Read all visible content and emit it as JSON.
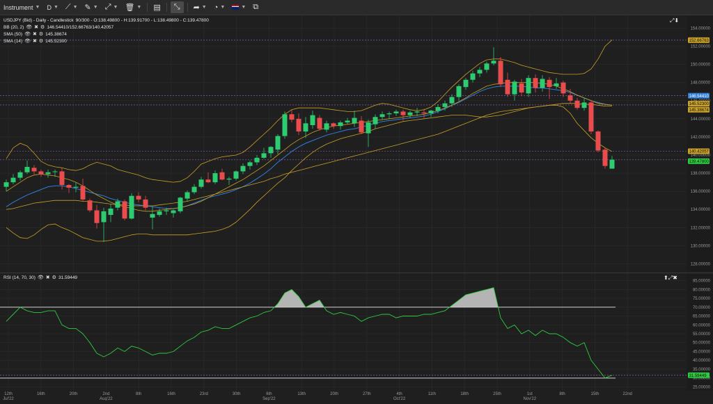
{
  "toolbar": {
    "instrument_label": "Instrument",
    "timeframe_label": "D",
    "items": [
      "line-tool-icon",
      "pencil-icon",
      "crosshair-tool-icon",
      "trash-icon",
      "layout-icon",
      "fullscreen-icon",
      "arrow-share-icon",
      "bell-icon",
      "language-flag-icon",
      "popout-icon"
    ]
  },
  "main": {
    "title": "USDJPY (Bid) - Daily - Candlestick",
    "ohlc": " 90/300 - O:138.49800 - H:139.91700 - L:138.49800 - C:139.47800",
    "legend": [
      {
        "name": "BB (20, 2)",
        "values": "146.54410/152.66763/140.42057"
      },
      {
        "name": "SMA (50)",
        "values": "145.38674"
      },
      {
        "name": "SMA (14)",
        "values": "145.52300"
      }
    ],
    "y_ticks": [
      "154.00000",
      "152.00000",
      "150.00000",
      "148.00000",
      "146.00000",
      "144.00000",
      "142.00000",
      "140.00000",
      "138.00000",
      "136.00000",
      "134.00000",
      "132.00000",
      "130.00000",
      "128.00000"
    ],
    "price_tags": [
      {
        "label": "152.66763",
        "bg": "#c9a227",
        "fg": "#111",
        "y": 152.66763
      },
      {
        "label": "146.54410",
        "bg": "#2f7ed8",
        "fg": "#fff",
        "y": 146.5441
      },
      {
        "label": "145.52300",
        "bg": "#c9a227",
        "fg": "#111",
        "y": 145.523
      },
      {
        "label": "145.38674",
        "bg": "#c9a227",
        "fg": "#111",
        "y": 145.38674
      },
      {
        "label": "140.42057",
        "bg": "#c9a227",
        "fg": "#111",
        "y": 140.42057
      },
      {
        "label": "139.47800",
        "bg": "#2ecc40",
        "fg": "#111",
        "y": 139.478
      }
    ]
  },
  "rsi": {
    "title": "RSI (14, 70, 30)",
    "value": "31.59449",
    "y_ticks": [
      "85.00000",
      "80.00000",
      "75.00000",
      "70.00000",
      "65.00000",
      "60.00000",
      "55.00000",
      "50.00000",
      "45.00000",
      "40.00000",
      "35.00000",
      "30.00000",
      "25.00000"
    ],
    "tag": {
      "label": "31.59449",
      "bg": "#2ecc40",
      "fg": "#111"
    }
  },
  "x_ticks": [
    {
      "label": "12th",
      "sub": "Jul'22"
    },
    {
      "label": "16th",
      "sub": ""
    },
    {
      "label": "20th",
      "sub": ""
    },
    {
      "label": "2nd",
      "sub": "Aug'22"
    },
    {
      "label": "8th",
      "sub": ""
    },
    {
      "label": "16th",
      "sub": ""
    },
    {
      "label": "23rd",
      "sub": ""
    },
    {
      "label": "30th",
      "sub": ""
    },
    {
      "label": "6th",
      "sub": "Sep'22"
    },
    {
      "label": "13th",
      "sub": ""
    },
    {
      "label": "20th",
      "sub": ""
    },
    {
      "label": "27th",
      "sub": ""
    },
    {
      "label": "4th",
      "sub": "Oct'22"
    },
    {
      "label": "11th",
      "sub": ""
    },
    {
      "label": "18th",
      "sub": ""
    },
    {
      "label": "25th",
      "sub": ""
    },
    {
      "label": "1st",
      "sub": "Nov'22"
    },
    {
      "label": "8th",
      "sub": ""
    },
    {
      "label": "15th",
      "sub": ""
    },
    {
      "label": "22nd",
      "sub": ""
    }
  ],
  "colors": {
    "up": "#2ecc71",
    "down": "#e84c4c",
    "bb": "#c9a227",
    "sma": "#2f7ed8",
    "rsi_line": "#2ecc40",
    "band": "#cfcfcf",
    "grid": "#2c2c2c",
    "dashed": "#c77dff"
  },
  "chart_data": [
    {
      "type": "candlestick",
      "title": "USDJPY (Bid) - Daily - Candlestick",
      "ylim": [
        127.5,
        154.8
      ],
      "candles": [
        [
          136.5,
          137.3,
          136.0,
          137.0
        ],
        [
          137.0,
          137.9,
          136.8,
          137.5
        ],
        [
          137.5,
          138.3,
          137.2,
          138.1
        ],
        [
          138.1,
          139.4,
          137.9,
          138.7
        ],
        [
          138.6,
          138.9,
          137.9,
          138.2
        ],
        [
          138.2,
          138.4,
          137.6,
          137.9
        ],
        [
          137.9,
          138.4,
          137.5,
          138.1
        ],
        [
          138.2,
          138.4,
          137.6,
          138.2
        ],
        [
          138.2,
          138.6,
          136.2,
          136.7
        ],
        [
          136.7,
          136.8,
          135.8,
          136.4
        ],
        [
          136.4,
          137.0,
          135.9,
          136.5
        ],
        [
          136.6,
          137.4,
          134.9,
          135.1
        ],
        [
          135.0,
          135.2,
          133.7,
          133.9
        ],
        [
          133.9,
          134.5,
          131.9,
          132.5
        ],
        [
          132.6,
          134.2,
          130.4,
          133.8
        ],
        [
          133.4,
          134.6,
          132.6,
          134.1
        ],
        [
          134.2,
          135.2,
          133.9,
          134.9
        ],
        [
          134.9,
          135.1,
          132.8,
          133.0
        ],
        [
          133.0,
          135.8,
          132.9,
          135.5
        ],
        [
          135.5,
          135.9,
          134.8,
          135.1
        ],
        [
          135.1,
          135.5,
          133.9,
          134.2
        ],
        [
          133.1,
          134.3,
          131.8,
          133.5
        ],
        [
          133.4,
          134.1,
          133.2,
          133.8
        ],
        [
          133.8,
          134.2,
          133.4,
          133.9
        ],
        [
          133.6,
          134.0,
          133.1,
          133.9
        ],
        [
          133.8,
          135.4,
          133.6,
          135.3
        ],
        [
          135.2,
          136.1,
          134.9,
          135.9
        ],
        [
          135.9,
          136.8,
          135.7,
          136.5
        ],
        [
          136.5,
          137.6,
          136.3,
          137.3
        ],
        [
          137.3,
          138.1,
          136.9,
          137.0
        ],
        [
          137.0,
          138.3,
          136.8,
          138.0
        ],
        [
          138.1,
          138.5,
          137.2,
          137.3
        ],
        [
          137.3,
          137.6,
          136.7,
          137.4
        ],
        [
          137.4,
          138.3,
          137.2,
          138.2
        ],
        [
          138.2,
          139.1,
          137.9,
          138.8
        ],
        [
          138.8,
          139.4,
          138.4,
          139.2
        ],
        [
          139.2,
          140.0,
          138.9,
          139.7
        ],
        [
          139.7,
          140.8,
          139.6,
          140.2
        ],
        [
          140.2,
          141.0,
          139.7,
          140.9
        ],
        [
          140.6,
          142.3,
          140.1,
          142.1
        ],
        [
          142.1,
          144.8,
          141.8,
          144.5
        ],
        [
          144.5,
          145.0,
          143.6,
          143.9
        ],
        [
          144.0,
          144.6,
          142.2,
          142.6
        ],
        [
          142.6,
          144.2,
          141.9,
          143.5
        ],
        [
          143.3,
          144.9,
          142.9,
          144.4
        ],
        [
          144.1,
          144.4,
          142.7,
          142.9
        ],
        [
          142.8,
          143.8,
          142.5,
          143.5
        ],
        [
          143.5,
          143.6,
          142.9,
          143.2
        ],
        [
          143.2,
          143.8,
          142.8,
          143.6
        ],
        [
          143.6,
          144.1,
          143.4,
          143.8
        ],
        [
          143.5,
          144.9,
          143.1,
          144.1
        ],
        [
          143.8,
          144.3,
          142.3,
          142.5
        ],
        [
          142.4,
          143.9,
          140.9,
          143.6
        ],
        [
          143.4,
          144.5,
          142.9,
          144.2
        ],
        [
          144.2,
          144.8,
          143.9,
          144.5
        ],
        [
          144.5,
          144.8,
          144.0,
          144.6
        ],
        [
          144.6,
          145.0,
          144.3,
          144.8
        ],
        [
          144.8,
          145.0,
          143.8,
          144.4
        ],
        [
          144.4,
          144.9,
          144.1,
          144.7
        ],
        [
          144.7,
          145.2,
          144.3,
          144.8
        ],
        [
          144.7,
          145.1,
          144.1,
          144.6
        ],
        [
          144.6,
          145.0,
          144.2,
          144.9
        ],
        [
          144.9,
          145.6,
          144.6,
          145.3
        ],
        [
          145.3,
          146.0,
          144.9,
          145.7
        ],
        [
          145.7,
          146.7,
          145.3,
          146.4
        ],
        [
          146.4,
          147.8,
          146.0,
          147.6
        ],
        [
          147.5,
          148.5,
          147.2,
          148.3
        ],
        [
          148.3,
          149.3,
          148.0,
          149.0
        ],
        [
          149.0,
          149.7,
          148.6,
          149.4
        ],
        [
          149.4,
          150.3,
          149.1,
          150.1
        ],
        [
          150.1,
          151.9,
          149.9,
          150.4
        ],
        [
          150.4,
          150.8,
          147.5,
          147.8
        ],
        [
          148.3,
          149.1,
          146.4,
          146.7
        ],
        [
          146.7,
          148.3,
          146.0,
          148.1
        ],
        [
          147.9,
          148.4,
          146.5,
          146.9
        ],
        [
          146.8,
          148.8,
          146.4,
          148.5
        ],
        [
          148.5,
          148.9,
          146.9,
          147.4
        ],
        [
          147.4,
          148.8,
          147.0,
          148.4
        ],
        [
          148.3,
          148.6,
          146.2,
          147.5
        ],
        [
          147.6,
          148.5,
          147.3,
          147.9
        ],
        [
          148.0,
          148.2,
          146.4,
          146.8
        ],
        [
          146.6,
          147.3,
          145.7,
          146.0
        ],
        [
          146.0,
          146.3,
          145.0,
          145.2
        ],
        [
          145.2,
          146.3,
          144.9,
          145.8
        ],
        [
          145.8,
          146.1,
          142.3,
          142.6
        ],
        [
          142.6,
          142.7,
          140.3,
          140.5
        ],
        [
          140.6,
          140.8,
          138.5,
          138.8
        ],
        [
          138.5,
          139.9,
          138.5,
          139.5
        ]
      ],
      "bb_upper": [
        139.6,
        140.8,
        141.3,
        141.0,
        140.2,
        139.3,
        138.9,
        138.7,
        138.6,
        138.4,
        138.3,
        138.5,
        138.9,
        139.2,
        139.0,
        138.8,
        138.4,
        138.2,
        138.0,
        137.8,
        137.5,
        137.3,
        137.2,
        137.1,
        137.0,
        137.1,
        137.5,
        138.2,
        139.0,
        139.3,
        139.6,
        139.8,
        139.9,
        140.0,
        140.3,
        140.9,
        141.6,
        142.3,
        143.0,
        143.8,
        144.5,
        145.0,
        145.2,
        145.2,
        145.2,
        145.2,
        145.1,
        145.0,
        144.9,
        144.8,
        144.8,
        144.9,
        145.2,
        145.5,
        145.7,
        145.6,
        145.4,
        145.2,
        145.0,
        144.9,
        145.0,
        145.3,
        145.9,
        146.7,
        147.5,
        148.2,
        148.9,
        149.5,
        150.1,
        150.5,
        150.6,
        150.6,
        150.4,
        150.2,
        149.9,
        149.7,
        149.5,
        149.3,
        149.1,
        149.0,
        148.9,
        148.9,
        148.9,
        149.0,
        149.5,
        150.6,
        152.0,
        152.7
      ],
      "bb_lower": [
        132.0,
        131.4,
        130.9,
        130.8,
        131.2,
        131.8,
        132.3,
        132.4,
        132.0,
        131.7,
        131.3,
        130.9,
        130.7,
        130.5,
        130.5,
        130.6,
        130.8,
        131.0,
        131.2,
        131.3,
        131.3,
        131.2,
        131.2,
        131.2,
        131.2,
        131.2,
        131.2,
        131.3,
        131.4,
        131.5,
        131.6,
        131.8,
        132.1,
        132.6,
        133.3,
        134.0,
        134.8,
        135.5,
        136.2,
        136.9,
        137.5,
        138.3,
        139.0,
        139.7,
        140.3,
        140.8,
        141.2,
        141.5,
        141.8,
        142.0,
        142.2,
        142.4,
        142.6,
        142.9,
        143.1,
        143.3,
        143.5,
        143.7,
        143.8,
        143.9,
        144.0,
        144.1,
        144.2,
        144.3,
        144.4,
        144.4,
        144.4,
        144.3,
        144.2,
        144.2,
        144.3,
        144.4,
        144.6,
        144.8,
        145.0,
        145.2,
        145.3,
        145.4,
        145.5,
        145.5,
        145.3,
        144.6,
        143.5,
        142.7,
        141.9,
        141.3,
        140.8,
        140.4
      ],
      "bb_mid": [
        134.3,
        134.8,
        135.2,
        135.6,
        135.9,
        136.2,
        136.5,
        136.6,
        136.6,
        136.5,
        136.3,
        136.1,
        135.9,
        135.7,
        135.5,
        135.2,
        135.0,
        134.8,
        134.6,
        134.5,
        134.4,
        134.3,
        134.2,
        134.1,
        134.1,
        134.2,
        134.4,
        134.7,
        135.0,
        135.3,
        135.5,
        135.7,
        135.9,
        136.2,
        136.5,
        136.9,
        137.4,
        137.9,
        138.5,
        139.2,
        139.8,
        140.4,
        140.9,
        141.3,
        141.6,
        141.9,
        142.2,
        142.4,
        142.6,
        142.8,
        142.9,
        143.1,
        143.3,
        143.5,
        143.7,
        143.8,
        143.9,
        144.0,
        144.1,
        144.2,
        144.3,
        144.5,
        144.8,
        145.1,
        145.5,
        145.8,
        146.2,
        146.6,
        147.0,
        147.3,
        147.5,
        147.6,
        147.6,
        147.6,
        147.6,
        147.5,
        147.4,
        147.4,
        147.3,
        147.2,
        147.1,
        146.9,
        146.6,
        146.3,
        146.0,
        145.8,
        145.6,
        145.5
      ],
      "sma50": [
        134.0,
        134.1,
        134.3,
        134.5,
        134.7,
        134.8,
        134.9,
        135.0,
        135.0,
        135.0,
        135.0,
        134.9,
        134.9,
        134.8,
        134.7,
        134.6,
        134.5,
        134.5,
        134.4,
        134.4,
        134.4,
        134.4,
        134.5,
        134.6,
        134.7,
        134.8,
        134.9,
        135.1,
        135.3,
        135.5,
        135.7,
        135.9,
        136.1,
        136.3,
        136.5,
        136.7,
        136.9,
        137.1,
        137.4,
        137.6,
        137.9,
        138.1,
        138.3,
        138.5,
        138.7,
        138.9,
        139.1,
        139.3,
        139.5,
        139.7,
        139.9,
        140.1,
        140.3,
        140.5,
        140.7,
        140.9,
        141.1,
        141.3,
        141.5,
        141.7,
        141.9,
        142.1,
        142.3,
        142.6,
        142.9,
        143.2,
        143.5,
        143.8,
        144.1,
        144.4,
        144.6,
        144.8,
        144.9,
        145.0,
        145.1,
        145.2,
        145.3,
        145.4,
        145.5,
        145.6,
        145.7,
        145.7,
        145.7,
        145.6,
        145.6,
        145.5,
        145.4,
        145.4
      ],
      "sma14": [
        136.0,
        136.5,
        137.0,
        137.5,
        137.8,
        137.9,
        137.8,
        137.7,
        137.5,
        137.3,
        137.0,
        136.6,
        136.1,
        135.6,
        135.2,
        134.8,
        134.5,
        134.3,
        134.1,
        133.9,
        133.8,
        133.8,
        133.9,
        134.0,
        134.1,
        134.2,
        134.4,
        134.6,
        134.9,
        135.3,
        135.7,
        136.1,
        136.5,
        136.9,
        137.3,
        137.8,
        138.3,
        138.8,
        139.4,
        140.0,
        140.6,
        141.2,
        141.7,
        142.1,
        142.5,
        142.8,
        143.0,
        143.2,
        143.3,
        143.4,
        143.5,
        143.6,
        143.7,
        143.8,
        143.9,
        144.0,
        144.1,
        144.2,
        144.3,
        144.4,
        144.5,
        144.7,
        144.9,
        145.2,
        145.5,
        145.9,
        146.3,
        146.8,
        147.2,
        147.6,
        147.8,
        147.9,
        148.0,
        148.0,
        148.0,
        148.0,
        148.0,
        147.9,
        147.8,
        147.6,
        147.3,
        147.0,
        146.6,
        146.3,
        146.0,
        145.7,
        145.6,
        145.5
      ]
    },
    {
      "type": "line",
      "title": "RSI (14, 70, 30)",
      "ylim": [
        24,
        86
      ],
      "levels": [
        70,
        30
      ],
      "values": [
        62,
        66,
        70,
        68,
        67,
        67,
        68,
        68,
        60,
        58,
        58,
        55,
        50,
        44,
        42,
        44,
        47,
        45,
        48,
        47,
        45,
        43,
        44,
        44,
        45,
        48,
        51,
        53,
        56,
        57,
        59,
        58,
        58,
        60,
        62,
        64,
        65,
        67,
        68,
        72,
        78,
        80,
        76,
        70,
        72,
        74,
        68,
        66,
        67,
        66,
        65,
        62,
        64,
        65,
        66,
        66,
        64,
        65,
        65,
        65,
        66,
        66,
        67,
        68,
        71,
        74,
        77,
        78,
        79,
        80,
        81,
        64,
        58,
        60,
        55,
        57,
        54,
        57,
        55,
        55,
        53,
        50,
        48,
        50,
        40,
        35,
        30,
        31.6
      ]
    }
  ]
}
